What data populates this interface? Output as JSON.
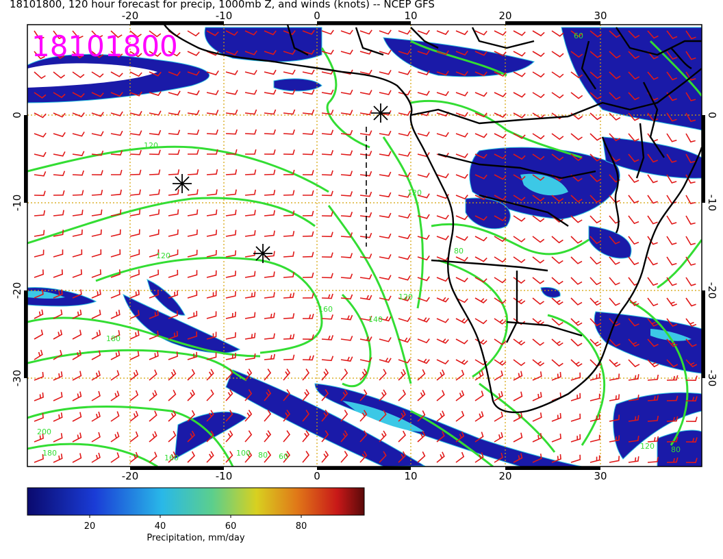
{
  "title": "18101800, 120 hour forecast for precip, 1000mb Z, and winds (knots) -- NCEP GFS",
  "stamp": "18101800",
  "map": {
    "lon_ticks": [
      "-20",
      "-10",
      "0",
      "10",
      "20",
      "30"
    ],
    "lat_ticks": [
      "0",
      "-10",
      "-20",
      "-30"
    ],
    "contour_labels": [
      "60",
      "80",
      "120",
      "120",
      "140",
      "160",
      "160",
      "180",
      "180",
      "200",
      "100",
      "80",
      "60",
      "120",
      "120",
      "120",
      "80"
    ],
    "colors": {
      "precip_low": "#1a1aa8",
      "precip_mid": "#3cc8e6",
      "precip_high": "#b03010",
      "contour": "#33dd33",
      "wind_barbs": "#e01818",
      "coastline": "#000000",
      "grid": "#d4a000",
      "stamp": "#ff00ff"
    }
  },
  "colorbar": {
    "tick_labels": [
      "20",
      "40",
      "60",
      "80"
    ],
    "label": "Precipitation, mm/day"
  }
}
